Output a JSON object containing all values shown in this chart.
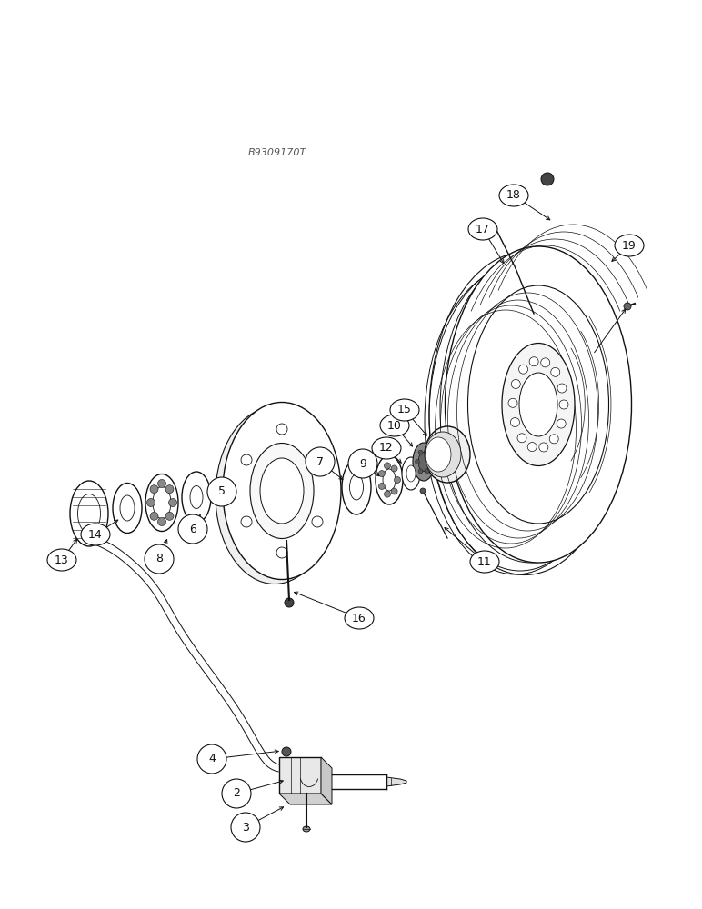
{
  "bg_color": "#ffffff",
  "line_color": "#111111",
  "watermark": "B9309170T",
  "fig_width": 7.72,
  "fig_height": 10.0,
  "dpi": 100
}
